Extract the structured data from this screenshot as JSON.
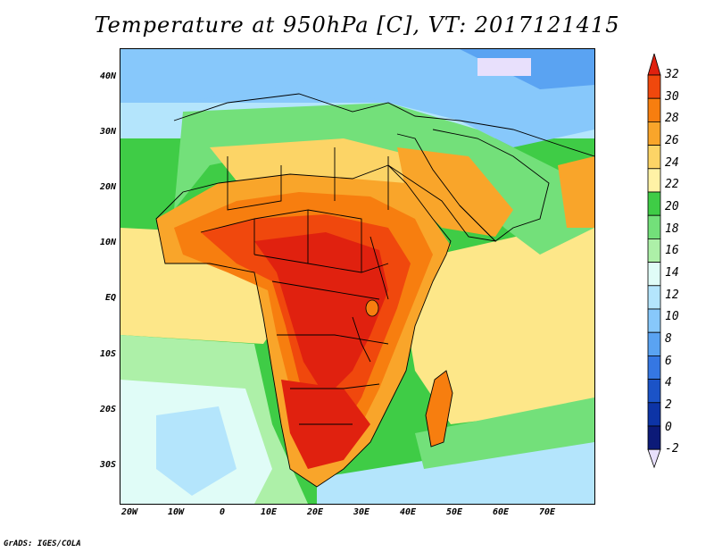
{
  "title": "Temperature at 950hPa [C], VT: 2017121415",
  "credit": "GrADS: IGES/COLA",
  "lat_labels": [
    "40N",
    "30N",
    "20N",
    "10N",
    "EQ",
    "10S",
    "20S",
    "30S"
  ],
  "lon_labels": [
    "20W",
    "10W",
    "0",
    "10E",
    "20E",
    "30E",
    "40E",
    "50E",
    "60E",
    "70E"
  ],
  "colorbar": {
    "labels": [
      "32",
      "30",
      "28",
      "26",
      "24",
      "22",
      "20",
      "18",
      "16",
      "14",
      "12",
      "10",
      "8",
      "6",
      "4",
      "2",
      "0",
      "-2"
    ],
    "colors": [
      "#e0210f",
      "#f0480d",
      "#f77e0f",
      "#f9a52a",
      "#fcd466",
      "#fff2a6",
      "#3fcc46",
      "#73e07a",
      "#adf0a8",
      "#e0fcf7",
      "#b4e5fc",
      "#87c8fb",
      "#5aa3f2",
      "#3577e3",
      "#1b53c7",
      "#0d34a6",
      "#0c1a78",
      "#e8e0fc"
    ]
  },
  "map_colors": {
    "ocean_warm": "#fde789",
    "ocean_mild": "#3fcc46",
    "ocean_cool": "#e0fcf7",
    "ocean_cold": "#87c8fb",
    "land_hot": "#e0210f",
    "land_warm": "#f77e0f",
    "land_mild": "#fcd466",
    "land_cool": "#73e07a",
    "land_cold": "#5aa3f2",
    "border": "#000000"
  }
}
